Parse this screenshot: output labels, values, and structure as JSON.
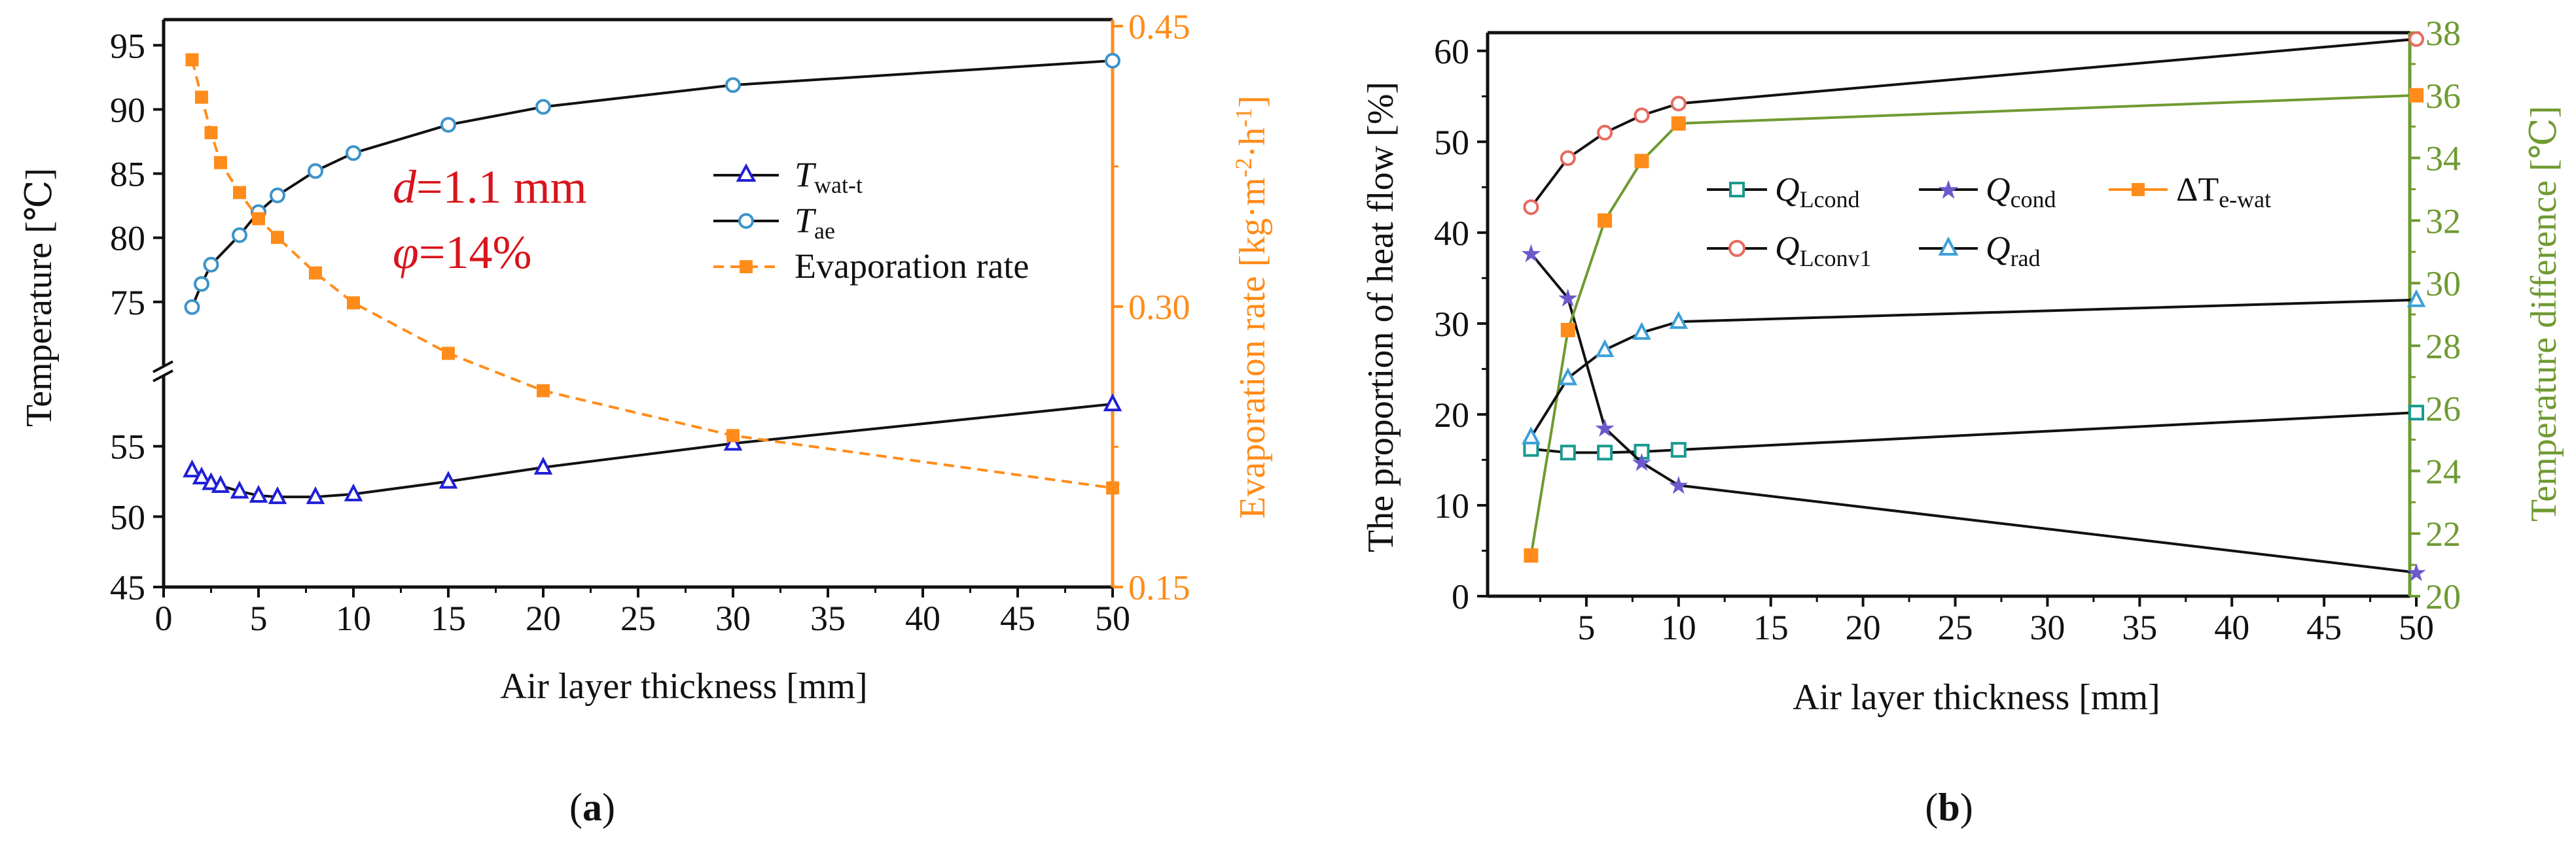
{
  "colors": {
    "black": "#111111",
    "blue": "#1f1fd6",
    "light_blue": "#3d93c9",
    "orange": "#ff8c1a",
    "red": "#d8141c",
    "teal": "#1a9a8f",
    "purple": "#6a5acd",
    "salmon": "#e8695f",
    "sky": "#3b9fd8",
    "green": "#6f9a32"
  },
  "chart_data": [
    {
      "panel": "a",
      "type": "line",
      "panel_label": "a",
      "xlabel": "Air layer thickness [mm]",
      "ylabel": "Temperature [℃]",
      "y2label_main": "Evaporation rate [kg·m",
      "y2label_sup1": "-2",
      "y2label_mid": "·h",
      "y2label_sup2": "-1",
      "y2label_end": "]",
      "xlim": [
        0,
        50
      ],
      "xticks": [
        "0",
        "5",
        "10",
        "15",
        "20",
        "25",
        "30",
        "35",
        "40",
        "45",
        "50"
      ],
      "y_axis_break": true,
      "ylim_upper": [
        70,
        97
      ],
      "ylim_lower": [
        45,
        60
      ],
      "yticks_upper": [
        "75",
        "80",
        "85",
        "90",
        "95"
      ],
      "yticks_lower": [
        "45",
        "50",
        "55"
      ],
      "y2lim": [
        0.15,
        0.45
      ],
      "y2ticks": [
        "0.15",
        "0.30",
        "0.45"
      ],
      "annotation_d": "d",
      "annotation_d_rest": "=1.1 mm",
      "annotation_phi": "φ",
      "annotation_phi_rest": "=14%",
      "legend": [
        {
          "main": "T",
          "sub": "wat-t"
        },
        {
          "main": "T",
          "sub": "ae"
        },
        {
          "main": "Evaporation rate",
          "sub": ""
        }
      ],
      "series": [
        {
          "name": "T_wat-t",
          "axis": "lower",
          "marker": "triangle",
          "x": [
            1.5,
            2,
            2.5,
            3,
            4,
            5,
            6,
            8,
            10,
            15,
            20,
            30,
            50
          ],
          "y": [
            53.3,
            52.8,
            52.4,
            52.2,
            51.8,
            51.5,
            51.4,
            51.4,
            51.6,
            52.5,
            53.5,
            55.2,
            58.0
          ]
        },
        {
          "name": "T_ae",
          "axis": "upper",
          "marker": "circle",
          "x": [
            1.5,
            2,
            2.5,
            4,
            5,
            6,
            8,
            10,
            15,
            20,
            30,
            50
          ],
          "y": [
            74.6,
            76.4,
            77.9,
            80.2,
            82.0,
            83.3,
            85.2,
            86.6,
            88.8,
            90.2,
            91.9,
            93.8
          ]
        },
        {
          "name": "Evaporation rate",
          "axis": "right",
          "marker": "square",
          "x": [
            1.5,
            2,
            2.5,
            3,
            4,
            5,
            6,
            8,
            10,
            15,
            20,
            30,
            50
          ],
          "y": [
            0.432,
            0.412,
            0.393,
            0.377,
            0.361,
            0.347,
            0.337,
            0.318,
            0.302,
            0.275,
            0.255,
            0.231,
            0.203
          ]
        }
      ]
    },
    {
      "panel": "b",
      "type": "line",
      "panel_label": "b",
      "xlabel": "Air layer thickness [mm]",
      "ylabel": "The proportion of heat flow [%]",
      "y2label": "Temperature difference [℃]",
      "xlim": [
        0,
        50
      ],
      "xticks": [
        "5",
        "10",
        "15",
        "20",
        "25",
        "30",
        "35",
        "40",
        "45",
        "50"
      ],
      "ylim": [
        0,
        62
      ],
      "yticks": [
        "0",
        "10",
        "20",
        "30",
        "40",
        "50",
        "60"
      ],
      "y2lim": [
        20,
        38
      ],
      "y2ticks": [
        "20",
        "22",
        "24",
        "26",
        "28",
        "30",
        "32",
        "34",
        "36",
        "38"
      ],
      "legend": [
        {
          "symbol": "Q",
          "sub": "Lcond"
        },
        {
          "symbol": "Q",
          "sub": "cond"
        },
        {
          "symbol": "ΔT",
          "sub": "e-wat"
        },
        {
          "symbol": "Q",
          "sub": "Lconv1"
        },
        {
          "symbol": "Q",
          "sub": "rad"
        }
      ],
      "series": [
        {
          "name": "Q_Lcond",
          "axis": "left",
          "marker": "square_open",
          "x": [
            2,
            4,
            6,
            8,
            10,
            50
          ],
          "y": [
            16.2,
            15.8,
            15.8,
            15.9,
            16.1,
            20.2
          ]
        },
        {
          "name": "Q_cond",
          "axis": "left",
          "marker": "star",
          "x": [
            2,
            4,
            6,
            8,
            10,
            50
          ],
          "y": [
            37.7,
            32.8,
            18.5,
            14.7,
            12.2,
            2.6
          ]
        },
        {
          "name": "ΔT_e-wat",
          "axis": "right",
          "marker": "square_filled",
          "x": [
            2,
            4,
            6,
            8,
            10,
            50
          ],
          "y": [
            21.3,
            28.5,
            32.0,
            33.9,
            35.1,
            36.0
          ]
        },
        {
          "name": "Q_Lconv1",
          "axis": "left",
          "marker": "circle",
          "x": [
            2,
            4,
            6,
            8,
            10,
            50
          ],
          "y": [
            42.8,
            48.2,
            51.0,
            52.9,
            54.2,
            61.3
          ]
        },
        {
          "name": "Q_rad",
          "axis": "left",
          "marker": "triangle",
          "x": [
            2,
            4,
            6,
            8,
            10,
            50
          ],
          "y": [
            17.5,
            24.0,
            27.1,
            29.0,
            30.2,
            32.6
          ]
        }
      ]
    }
  ]
}
